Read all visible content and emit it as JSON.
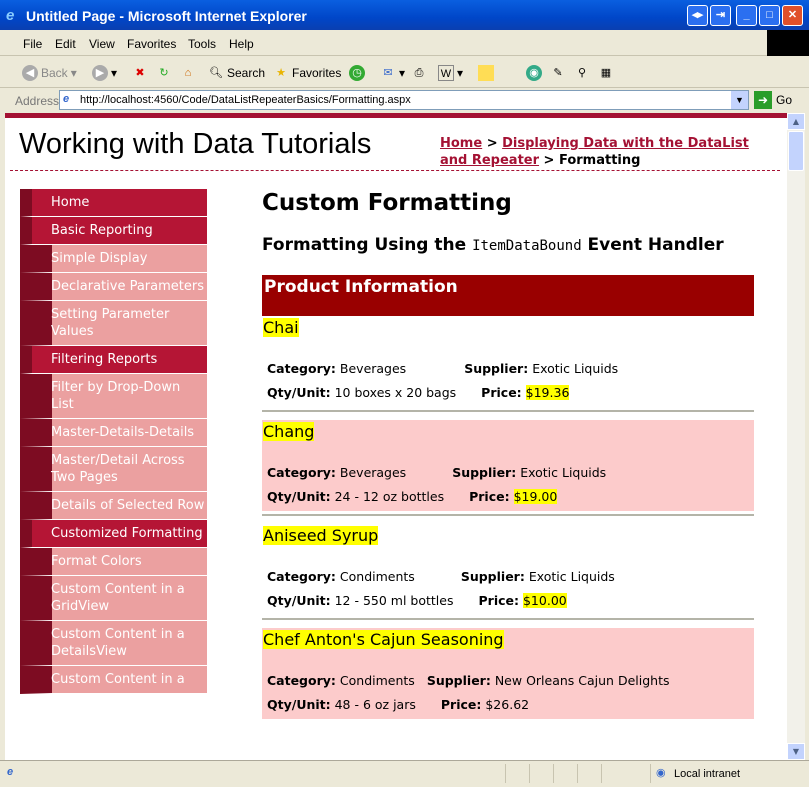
{
  "window": {
    "title": "Untitled Page - Microsoft Internet Explorer"
  },
  "menu": [
    "File",
    "Edit",
    "View",
    "Favorites",
    "Tools",
    "Help"
  ],
  "toolbar": {
    "back": "Back",
    "search": "Search",
    "favorites": "Favorites"
  },
  "address": {
    "label": "Address",
    "url": "http://localhost:4560/Code/DataListRepeaterBasics/Formatting.aspx",
    "go": "Go"
  },
  "site": {
    "title": "Working with Data Tutorials"
  },
  "breadcrumb": {
    "home": "Home",
    "sep1": " > ",
    "parent": "Displaying Data with the DataList and Repeater",
    "sep2": " > ",
    "current": "Formatting"
  },
  "sidebar": [
    {
      "label": "Home",
      "sub": false
    },
    {
      "label": "Basic Reporting",
      "sub": false
    },
    {
      "label": "Simple Display",
      "sub": true
    },
    {
      "label": "Declarative Parameters",
      "sub": true
    },
    {
      "label": "Setting Parameter Values",
      "sub": true
    },
    {
      "label": "Filtering Reports",
      "sub": false
    },
    {
      "label": "Filter by Drop-Down List",
      "sub": true
    },
    {
      "label": "Master-Details-Details",
      "sub": true
    },
    {
      "label": "Master/Detail Across Two Pages",
      "sub": true
    },
    {
      "label": "Details of Selected Row",
      "sub": true
    },
    {
      "label": "Customized Formatting",
      "sub": false
    },
    {
      "label": "Format Colors",
      "sub": true
    },
    {
      "label": "Custom Content in a GridView",
      "sub": true
    },
    {
      "label": "Custom Content in a DetailsView",
      "sub": true
    },
    {
      "label": "Custom Content in a",
      "sub": true
    }
  ],
  "main": {
    "title": "Custom Formatting",
    "subtitle_pre": "Formatting Using the ",
    "subtitle_code": "ItemDataBound",
    "subtitle_post": " Event Handler",
    "header": "Product Information",
    "labels": {
      "category": "Category:",
      "supplier": "Supplier:",
      "qty": "Qty/Unit:",
      "price": "Price:"
    },
    "products": [
      {
        "name": "Chai",
        "category": "Beverages",
        "supplier": "Exotic Liquids",
        "qty": "10 boxes x 20 bags",
        "price": "$19.36",
        "highlight_price": true
      },
      {
        "name": "Chang",
        "category": "Beverages",
        "supplier": "Exotic Liquids",
        "qty": "24 - 12 oz bottles",
        "price": "$19.00",
        "highlight_price": true
      },
      {
        "name": "Aniseed Syrup",
        "category": "Condiments",
        "supplier": "Exotic Liquids",
        "qty": "12 - 550 ml bottles",
        "price": "$10.00",
        "highlight_price": true
      },
      {
        "name": "Chef Anton's Cajun Seasoning",
        "category": "Condiments",
        "supplier": "New Orleans Cajun Delights",
        "qty": "48 - 6 oz jars",
        "price": "$26.62",
        "highlight_price": false
      }
    ]
  },
  "status": {
    "zone": "Local intranet"
  },
  "colors": {
    "accent": "#a41133",
    "header": "#990000",
    "alt_row": "#fccbcb",
    "highlight": "#ffff00"
  }
}
